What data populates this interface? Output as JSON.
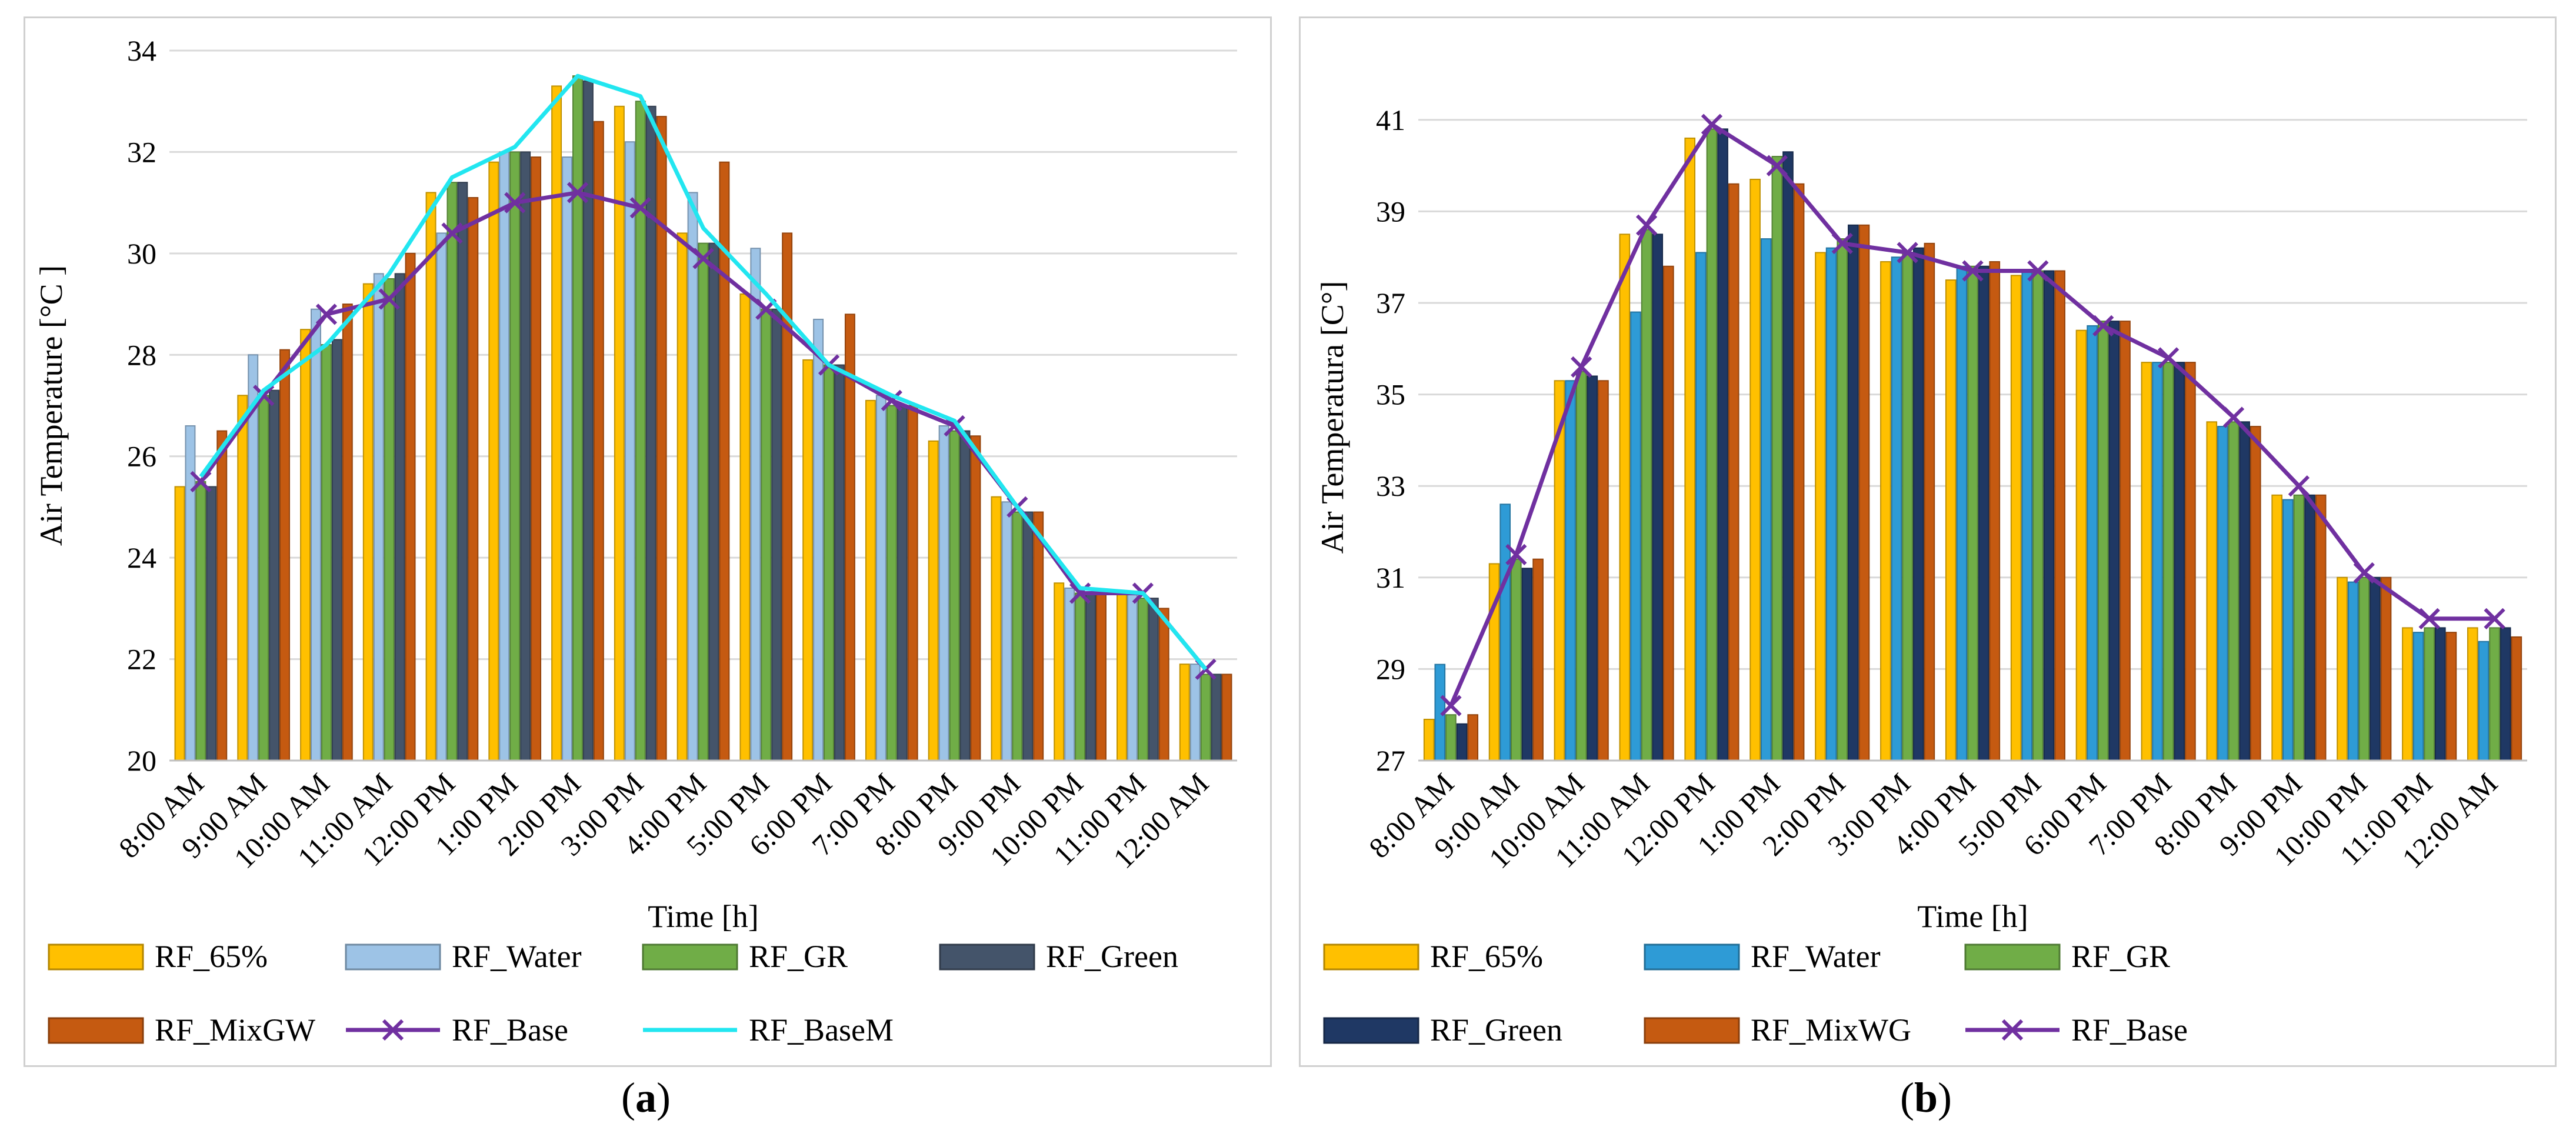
{
  "chart_data": [
    {
      "id": "a",
      "type": "bar",
      "caption": "a",
      "xlabel": "Time [h]",
      "ylabel": "Air Temperature  [°C ]",
      "ylim": [
        20,
        34
      ],
      "yticks": [
        20,
        22,
        24,
        26,
        28,
        30,
        32,
        34
      ],
      "grid": true,
      "categories": [
        "8:00 AM",
        "9:00 AM",
        "10:00 AM",
        "11:00 AM",
        "12:00 PM",
        "1:00 PM",
        "2:00 PM",
        "3:00 PM",
        "4:00 PM",
        "5:00 PM",
        "6:00 PM",
        "7:00 PM",
        "8:00 PM",
        "9:00 PM",
        "10:00 PM",
        "11:00 PM",
        "12:00 AM"
      ],
      "series": [
        {
          "name": "RF_65%",
          "kind": "bar",
          "color": "#FFC000",
          "values": [
            25.4,
            27.2,
            28.5,
            29.4,
            31.2,
            31.8,
            33.3,
            32.9,
            30.4,
            29.2,
            27.9,
            27.1,
            26.3,
            25.2,
            23.5,
            23.3,
            21.9
          ]
        },
        {
          "name": "RF_Water",
          "kind": "bar",
          "color": "#9DC3E6",
          "values": [
            26.6,
            28.0,
            28.9,
            29.6,
            30.4,
            32.0,
            31.9,
            32.2,
            31.2,
            30.1,
            28.7,
            27.2,
            26.6,
            25.1,
            23.4,
            23.3,
            21.9
          ]
        },
        {
          "name": "RF_GR",
          "kind": "bar",
          "color": "#70AD47",
          "values": [
            25.5,
            27.2,
            28.2,
            29.5,
            31.4,
            32.0,
            33.5,
            33.0,
            30.2,
            28.9,
            27.8,
            27.0,
            26.5,
            24.9,
            23.3,
            23.2,
            21.7
          ]
        },
        {
          "name": "RF_Green",
          "kind": "bar",
          "color": "#44546A",
          "values": [
            25.4,
            27.3,
            28.3,
            29.6,
            31.4,
            32.0,
            33.4,
            32.9,
            30.2,
            28.9,
            27.8,
            27.0,
            26.5,
            24.9,
            23.3,
            23.2,
            21.7
          ]
        },
        {
          "name": "RF_MixGW",
          "kind": "bar",
          "color": "#C55A11",
          "values": [
            26.5,
            28.1,
            29.0,
            30.0,
            31.1,
            31.9,
            32.6,
            32.7,
            31.8,
            30.4,
            28.8,
            27.0,
            26.4,
            24.9,
            23.3,
            23.0,
            21.7
          ]
        },
        {
          "name": "RF_Base",
          "kind": "line",
          "marker": "x",
          "color": "#7030A0",
          "values": [
            25.5,
            27.2,
            28.8,
            29.1,
            30.4,
            31.0,
            31.2,
            30.9,
            29.9,
            28.9,
            27.8,
            27.1,
            26.6,
            25.0,
            23.3,
            23.3,
            21.8
          ]
        },
        {
          "name": "RF_BaseM",
          "kind": "line",
          "color": "#22E6F0",
          "values": [
            25.6,
            27.3,
            28.2,
            29.6,
            31.5,
            32.1,
            33.5,
            33.1,
            30.5,
            29.2,
            27.8,
            27.2,
            26.7,
            25.0,
            23.4,
            23.3,
            21.8
          ]
        }
      ],
      "legend": [
        "RF_65%",
        "RF_Water",
        "RF_GR",
        "RF_Green",
        "RF_MixGW",
        "RF_Base",
        "RF_BaseM"
      ]
    },
    {
      "id": "b",
      "type": "bar",
      "caption": "b",
      "xlabel": "Time [h]",
      "ylabel": "Air Temperatura [C°]",
      "ylim": [
        27,
        42
      ],
      "yticks": [
        27,
        29,
        31,
        33,
        35,
        37,
        39,
        41
      ],
      "grid": true,
      "categories": [
        "8:00 AM",
        "9:00 AM",
        "10:00 AM",
        "11:00 AM",
        "12:00 PM",
        "1:00 PM",
        "2:00 PM",
        "3:00 PM",
        "4:00 PM",
        "5:00 PM",
        "6:00 PM",
        "7:00 PM",
        "8:00 PM",
        "9:00 PM",
        "10:00 PM",
        "11:00 PM",
        "12:00 AM"
      ],
      "series": [
        {
          "name": "RF_65%",
          "kind": "bar",
          "color": "#FFC000",
          "values": [
            27.9,
            31.3,
            35.3,
            38.5,
            40.6,
            39.7,
            38.1,
            37.9,
            37.5,
            37.6,
            36.4,
            35.7,
            34.4,
            32.8,
            31.0,
            29.9,
            29.9
          ]
        },
        {
          "name": "RF_Water",
          "kind": "bar",
          "color": "#2E9BD6",
          "values": [
            29.1,
            32.6,
            35.3,
            36.8,
            38.1,
            38.4,
            38.2,
            38.0,
            37.8,
            37.7,
            36.5,
            35.7,
            34.3,
            32.7,
            30.9,
            29.8,
            29.6
          ]
        },
        {
          "name": "RF_GR",
          "kind": "bar",
          "color": "#70AD47",
          "values": [
            28.0,
            31.4,
            35.5,
            38.6,
            40.8,
            40.2,
            38.4,
            38.1,
            37.8,
            37.7,
            36.6,
            35.7,
            34.4,
            32.8,
            31.0,
            29.9,
            29.9
          ]
        },
        {
          "name": "RF_Green",
          "kind": "bar",
          "color": "#1F3864",
          "values": [
            27.8,
            31.2,
            35.4,
            38.5,
            40.8,
            40.3,
            38.7,
            38.2,
            37.8,
            37.7,
            36.6,
            35.7,
            34.4,
            32.8,
            31.0,
            29.9,
            29.9
          ]
        },
        {
          "name": "RF_MixWG",
          "kind": "bar",
          "color": "#C55A11",
          "values": [
            28.0,
            31.4,
            35.3,
            37.8,
            39.6,
            39.6,
            38.7,
            38.3,
            37.9,
            37.7,
            36.6,
            35.7,
            34.3,
            32.8,
            31.0,
            29.8,
            29.7
          ]
        },
        {
          "name": "RF_Base",
          "kind": "line",
          "marker": "x",
          "color": "#7030A0",
          "values": [
            28.2,
            31.5,
            35.6,
            38.7,
            40.9,
            40.0,
            38.3,
            38.1,
            37.7,
            37.7,
            36.5,
            35.8,
            34.5,
            33.0,
            31.1,
            30.1,
            30.1
          ]
        }
      ],
      "legend": [
        "RF_65%",
        "RF_Water",
        "RF_GR",
        "RF_Green",
        "RF_MixWG",
        "RF_Base"
      ]
    }
  ]
}
